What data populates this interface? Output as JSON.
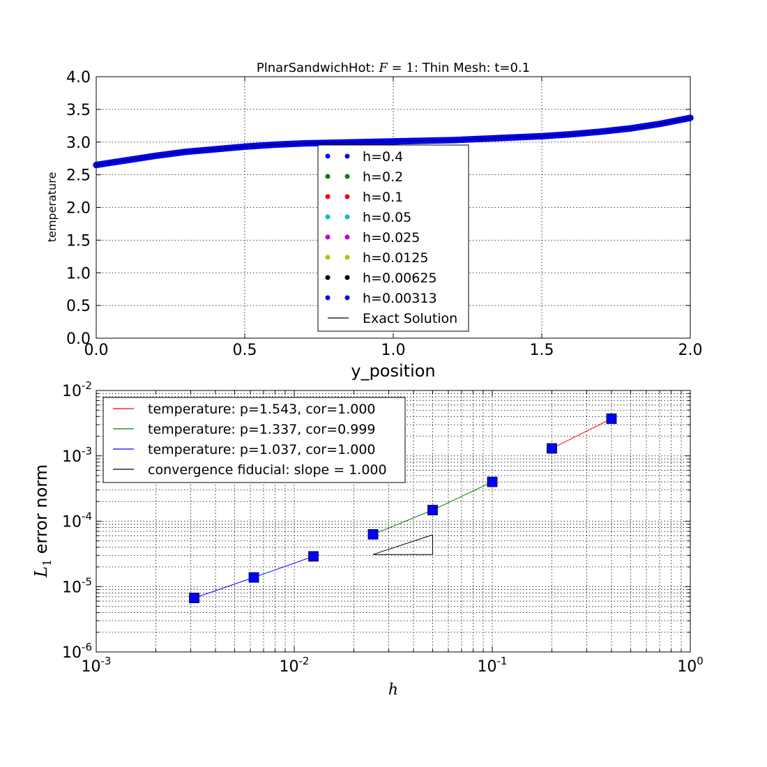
{
  "chart_data": [
    {
      "type": "scatter",
      "title_prefix": "PlnarSandwichHot: ",
      "title_math": "F",
      "title_math_rest": " = 1",
      "title_suffix": ": Thin Mesh: t=0.1",
      "xlabel": "y_position",
      "ylabel": "temperature",
      "xlim": [
        0,
        2
      ],
      "ylim": [
        0,
        4
      ],
      "xticks": [
        "0.0",
        "0.5",
        "1.0",
        "1.5",
        "2.0"
      ],
      "yticks": [
        "0.0",
        "0.5",
        "1.0",
        "1.5",
        "2.0",
        "2.5",
        "3.0",
        "3.5",
        "4.0"
      ],
      "grid": true,
      "legend_position": "center",
      "curve_points": [
        [
          0.0,
          2.65
        ],
        [
          0.1,
          2.72
        ],
        [
          0.2,
          2.79
        ],
        [
          0.3,
          2.85
        ],
        [
          0.4,
          2.89
        ],
        [
          0.5,
          2.93
        ],
        [
          0.6,
          2.96
        ],
        [
          0.7,
          2.98
        ],
        [
          0.8,
          2.99
        ],
        [
          0.9,
          3.0
        ],
        [
          1.0,
          3.01
        ],
        [
          1.1,
          3.02
        ],
        [
          1.2,
          3.03
        ],
        [
          1.3,
          3.05
        ],
        [
          1.4,
          3.07
        ],
        [
          1.5,
          3.09
        ],
        [
          1.6,
          3.12
        ],
        [
          1.7,
          3.16
        ],
        [
          1.8,
          3.21
        ],
        [
          1.9,
          3.28
        ],
        [
          2.0,
          3.37
        ]
      ],
      "series": [
        {
          "name": "h=0.4",
          "color": "#0000ff"
        },
        {
          "name": "h=0.2",
          "color": "#008000"
        },
        {
          "name": "h=0.1",
          "color": "#ff0000"
        },
        {
          "name": "h=0.05",
          "color": "#00bfbf"
        },
        {
          "name": "h=0.025",
          "color": "#bf00bf"
        },
        {
          "name": "h=0.0125",
          "color": "#bfbf00"
        },
        {
          "name": "h=0.00625",
          "color": "#000000"
        },
        {
          "name": "h=0.00313",
          "color": "#0000ff"
        },
        {
          "name": "Exact Solution",
          "color": "#000000"
        }
      ]
    },
    {
      "type": "line",
      "xlabel": "h",
      "ylabel_prefix": "L",
      "ylabel_sub": "1",
      "ylabel_suffix": " error norm",
      "xscale": "log",
      "yscale": "log",
      "xlim": [
        0.001,
        1
      ],
      "ylim": [
        1e-06,
        0.01
      ],
      "xticks": [
        {
          "base": "10",
          "exp": "-3"
        },
        {
          "base": "10",
          "exp": "-2"
        },
        {
          "base": "10",
          "exp": "-1"
        },
        {
          "base": "10",
          "exp": "0"
        }
      ],
      "yticks": [
        {
          "base": "10",
          "exp": "-6"
        },
        {
          "base": "10",
          "exp": "-5"
        },
        {
          "base": "10",
          "exp": "-4"
        },
        {
          "base": "10",
          "exp": "-3"
        },
        {
          "base": "10",
          "exp": "-2"
        }
      ],
      "grid": true,
      "legend_position": "top-left",
      "data_points": {
        "x": [
          0.4,
          0.2,
          0.1,
          0.05,
          0.025,
          0.0125,
          0.00625,
          0.003125
        ],
        "y": [
          0.0037,
          0.0013,
          0.0004,
          0.000148,
          6.3e-05,
          2.9e-05,
          1.38e-05,
          6.7e-06
        ],
        "color": "#0000ff"
      },
      "series": [
        {
          "name": "temperature: p=1.543, cor=1.000",
          "color": "#ff0000",
          "x": [
            0.2,
            0.4
          ],
          "y": [
            0.0013,
            0.0037
          ]
        },
        {
          "name": "temperature: p=1.337, cor=0.999",
          "color": "#008000",
          "x": [
            0.025,
            0.05,
            0.1
          ],
          "y": [
            6.3e-05,
            0.000148,
            0.0004
          ]
        },
        {
          "name": "temperature: p=1.037, cor=1.000",
          "color": "#0000ff",
          "x": [
            0.003125,
            0.00625,
            0.0125
          ],
          "y": [
            6.7e-06,
            1.38e-05,
            2.9e-05
          ]
        },
        {
          "name": "convergence fiducial: slope = 1.000",
          "color": "#000000",
          "x": [
            0.025,
            0.05,
            0.05,
            0.025
          ],
          "y": [
            3.1e-05,
            3.1e-05,
            6.2e-05,
            3.1e-05
          ]
        }
      ]
    }
  ]
}
